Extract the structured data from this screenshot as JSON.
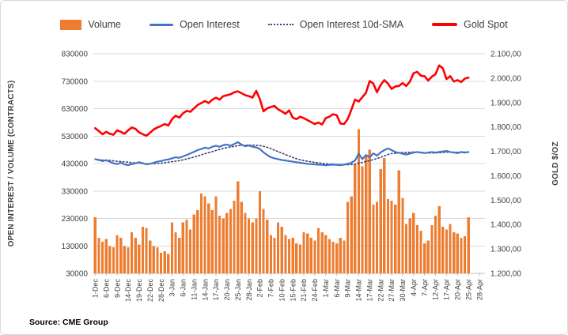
{
  "source": "Source: CME Group",
  "legend": {
    "items": [
      {
        "label": "Volume",
        "marker": "bar",
        "color": "#ED7D31"
      },
      {
        "label": "Open Interest",
        "marker": "line",
        "color": "#4472C4"
      },
      {
        "label": "Open Interest 10d-SMA",
        "marker": "dotted-line",
        "color": "#443C72"
      },
      {
        "label": "Gold Spot",
        "marker": "thick-line",
        "color": "#FF0000"
      }
    ]
  },
  "chart_data": {
    "type": "combo",
    "title": "",
    "legend_position": "top",
    "grid": "horizontal",
    "ylabel_left": "OPEN INTEREST / VOLUME (CONTRACTS)",
    "ylabel_right": "GOLD $/OZ",
    "y_left": {
      "min": 30000,
      "max": 830000,
      "tick_labels": [
        "830000",
        "730000",
        "630000",
        "530000",
        "430000",
        "330000",
        "230000",
        "130000",
        "30000"
      ]
    },
    "y_right": {
      "min": 1200,
      "max": 2100,
      "tick_labels": [
        "2.100,00",
        "2.000,00",
        "1.900,00",
        "1.800,00",
        "1.700,00",
        "1.600,00",
        "1.500,00",
        "1.400,00",
        "1.300,00",
        "1.200,00"
      ]
    },
    "x_tick_labels": [
      "1-Dec",
      "6-Dec",
      "9-Dec",
      "14-Dec",
      "19-Dec",
      "22-Dec",
      "28-Dec",
      "3-Jan",
      "6-Jan",
      "11-Jan",
      "14-Jan",
      "17-Jan",
      "20-Jan",
      "25-Jan",
      "28-Jan",
      "2-Feb",
      "7-Feb",
      "10-Feb",
      "15-Feb",
      "21-Feb",
      "24-Feb",
      "1-Mar",
      "6-Mar",
      "9-Mar",
      "14-Mar",
      "17-Mar",
      "22-Mar",
      "27-Mar",
      "30-Mar",
      "4-Apr",
      "7-Apr",
      "12-Apr",
      "17-Apr",
      "20-Apr",
      "25-Apr",
      "28-Apr"
    ],
    "points_per_tick": 3,
    "x_slots": 107,
    "series": [
      {
        "name": "Volume",
        "type": "bar",
        "axis": "left",
        "color": "#ED7D31",
        "values": [
          235000,
          160000,
          145000,
          155000,
          130000,
          125000,
          170000,
          160000,
          130000,
          125000,
          180000,
          160000,
          135000,
          200000,
          195000,
          150000,
          130000,
          125000,
          105000,
          110000,
          100000,
          215000,
          180000,
          160000,
          215000,
          225000,
          190000,
          245000,
          260000,
          320000,
          310000,
          285000,
          260000,
          310000,
          240000,
          230000,
          250000,
          265000,
          295000,
          365000,
          290000,
          250000,
          230000,
          215000,
          230000,
          330000,
          265000,
          225000,
          170000,
          160000,
          215000,
          200000,
          170000,
          155000,
          160000,
          140000,
          135000,
          180000,
          175000,
          160000,
          150000,
          195000,
          180000,
          170000,
          155000,
          145000,
          140000,
          160000,
          150000,
          290000,
          310000,
          425000,
          555000,
          420000,
          460000,
          480000,
          280000,
          290000,
          410000,
          450000,
          300000,
          295000,
          280000,
          405000,
          305000,
          210000,
          230000,
          250000,
          205000,
          185000,
          140000,
          150000,
          205000,
          240000,
          275000,
          200000,
          190000,
          210000,
          180000,
          175000,
          160000,
          165000,
          235000
        ]
      },
      {
        "name": "Open Interest",
        "type": "line",
        "axis": "left",
        "color": "#4472C4",
        "values": [
          446000,
          443000,
          439000,
          442000,
          437000,
          431000,
          428000,
          433000,
          427000,
          424000,
          428000,
          431000,
          435000,
          431000,
          427000,
          429000,
          433000,
          437000,
          439000,
          443000,
          445000,
          449000,
          453000,
          451000,
          456000,
          461000,
          467000,
          473000,
          479000,
          483000,
          488000,
          485000,
          491000,
          495000,
          491000,
          497000,
          499000,
          495000,
          501000,
          508000,
          499000,
          493000,
          496000,
          491000,
          489000,
          483000,
          471000,
          461000,
          453000,
          449000,
          446000,
          443000,
          441000,
          439000,
          437000,
          435000,
          433000,
          431000,
          429000,
          428000,
          427000,
          426000,
          425000,
          424000,
          425000,
          426000,
          425000,
          424000,
          426000,
          429000,
          433000,
          441000,
          466000,
          446000,
          461000,
          453000,
          467000,
          459000,
          471000,
          479000,
          485000,
          479000,
          472000,
          469000,
          466000,
          463000,
          466000,
          470000,
          472000,
          470000,
          468000,
          470000,
          472000,
          470000,
          472000,
          474000,
          476000,
          472000,
          470000,
          468000,
          472000,
          470000,
          472000
        ]
      },
      {
        "name": "Open Interest 10d-SMA",
        "type": "line",
        "style": "dotted",
        "axis": "left",
        "color": "#443C72",
        "derivation": "10-day trailing simple moving average of the Open Interest series"
      },
      {
        "name": "Gold Spot",
        "type": "line",
        "axis": "right",
        "color": "#FF0000",
        "values": [
          1795,
          1783,
          1770,
          1780,
          1772,
          1768,
          1786,
          1780,
          1772,
          1786,
          1798,
          1792,
          1778,
          1770,
          1764,
          1776,
          1790,
          1798,
          1804,
          1812,
          1806,
          1832,
          1846,
          1838,
          1856,
          1866,
          1862,
          1876,
          1890,
          1898,
          1906,
          1898,
          1912,
          1920,
          1912,
          1926,
          1930,
          1934,
          1942,
          1946,
          1938,
          1930,
          1926,
          1920,
          1948,
          1914,
          1864,
          1876,
          1882,
          1886,
          1872,
          1864,
          1854,
          1868,
          1838,
          1832,
          1842,
          1836,
          1828,
          1820,
          1812,
          1818,
          1810,
          1836,
          1842,
          1852,
          1848,
          1814,
          1812,
          1832,
          1870,
          1912,
          1904,
          1922,
          1940,
          1988,
          1978,
          1942,
          1972,
          1992,
          1978,
          1956,
          1966,
          1968,
          1980,
          1968,
          1986,
          2020,
          2026,
          2010,
          2008,
          1990,
          2006,
          2016,
          2052,
          2040,
          1996,
          2008,
          1986,
          1992,
          1984,
          1998,
          2002
        ]
      }
    ]
  }
}
